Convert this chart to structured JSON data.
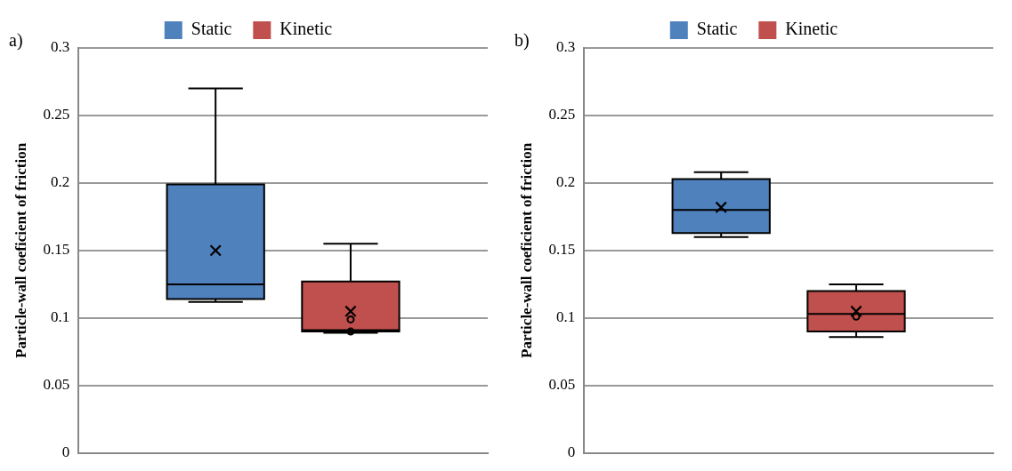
{
  "chart_data": [
    {
      "type": "box",
      "title": "a)",
      "ylabel": "Particle-wall coeficient of friction",
      "categories": [
        null
      ],
      "ylim": [
        0,
        0.3
      ],
      "yticks": [
        0,
        0.05,
        0.1,
        0.15,
        0.2,
        0.25,
        0.3
      ],
      "grid": "y",
      "legend": "top",
      "marker": "cross",
      "series": [
        {
          "name": "Static",
          "color": "#4f81bd",
          "boxes": [
            {
              "low": 0.112,
              "q1": 0.114,
              "median": 0.125,
              "q3": 0.199,
              "high": 0.27,
              "mean": 0.15
            }
          ]
        },
        {
          "name": "Kinetic",
          "color": "#c0504d",
          "boxes": [
            {
              "low": 0.089,
              "q1": 0.09,
              "median": 0.091,
              "q3": 0.127,
              "high": 0.155,
              "mean": 0.105,
              "outliers": [
                0.099,
                0.09
              ]
            }
          ]
        }
      ]
    },
    {
      "type": "box",
      "title": "b)",
      "ylabel": "Particle-wall coeficient of friction",
      "categories": [
        null
      ],
      "ylim": [
        0,
        0.3
      ],
      "yticks": [
        0,
        0.05,
        0.1,
        0.15,
        0.2,
        0.25,
        0.3
      ],
      "grid": "y",
      "legend": "top",
      "marker": "cross",
      "series": [
        {
          "name": "Static",
          "color": "#4f81bd",
          "boxes": [
            {
              "low": 0.16,
              "q1": 0.163,
              "median": 0.18,
              "q3": 0.203,
              "high": 0.208,
              "mean": 0.182
            }
          ]
        },
        {
          "name": "Kinetic",
          "color": "#c0504d",
          "boxes": [
            {
              "low": 0.086,
              "q1": 0.09,
              "median": 0.103,
              "q3": 0.12,
              "high": 0.125,
              "mean": 0.105,
              "outliers": [
                0.101
              ]
            }
          ]
        }
      ]
    }
  ]
}
